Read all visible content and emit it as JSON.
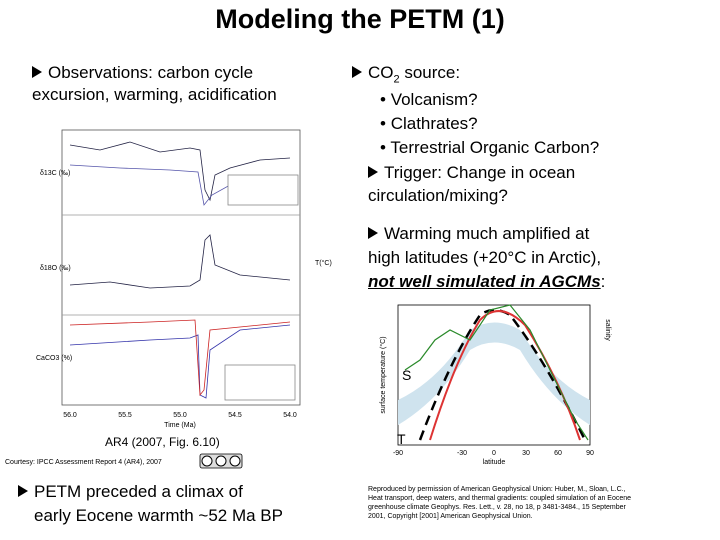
{
  "title": "Modeling the PETM (1)",
  "left_top": [
    "Observations: carbon cycle",
    "excursion, warming, acidification"
  ],
  "right_top": {
    "co2": {
      "pre": "CO",
      "sub": "2",
      "post": " source:"
    },
    "sources": [
      "Volcanism?",
      "Clathrates?",
      "Terrestrial Organic Carbon?"
    ],
    "trigger": [
      "Trigger: Change in ocean",
      "circulation/mixing?"
    ],
    "warming": [
      "Warming much amplified at",
      "high latitudes (+20°C in Arctic),"
    ],
    "warming_em": "not well simulated in AGCMs",
    "warming_end": ":"
  },
  "left_figure": {
    "panels": [
      "δ13C (‰)",
      "δ18O (‰)",
      "CaCO3 (%)"
    ],
    "right_axis": "T(°C)",
    "xticks": [
      "56.0",
      "55.5",
      "55.0",
      "54.5",
      "54.0"
    ],
    "xlabel": "Time (Ma)",
    "caption": "AR4 (2007, Fig. 6.10)",
    "courtesy": "Courtesy: IPCC Assessment Report 4 (AR4), 2007"
  },
  "right_figure": {
    "ylabel": "surface temperature (°C)",
    "y2label": "salinity",
    "xticks": [
      "-90",
      "-30",
      "0",
      "30",
      "60",
      "90"
    ],
    "xlabel": "latitude",
    "s_label": "S",
    "t_label": "T"
  },
  "left_bottom": [
    "PETM preceded a climax of",
    "early Eocene warmth ~52 Ma BP"
  ],
  "credit": [
    "Reproduced by permission of American Geophysical Union: Huber, M., Sloan, L.C.,",
    "Heat transport, deep waters, and thermal gradients: coupled simulation of an Eocene",
    "greenhouse climate Geophys. Res. Lett., v. 28, no 18, p 3481-3484., 15 September",
    "2001, Copyright [2001] American Geophysical Union."
  ]
}
